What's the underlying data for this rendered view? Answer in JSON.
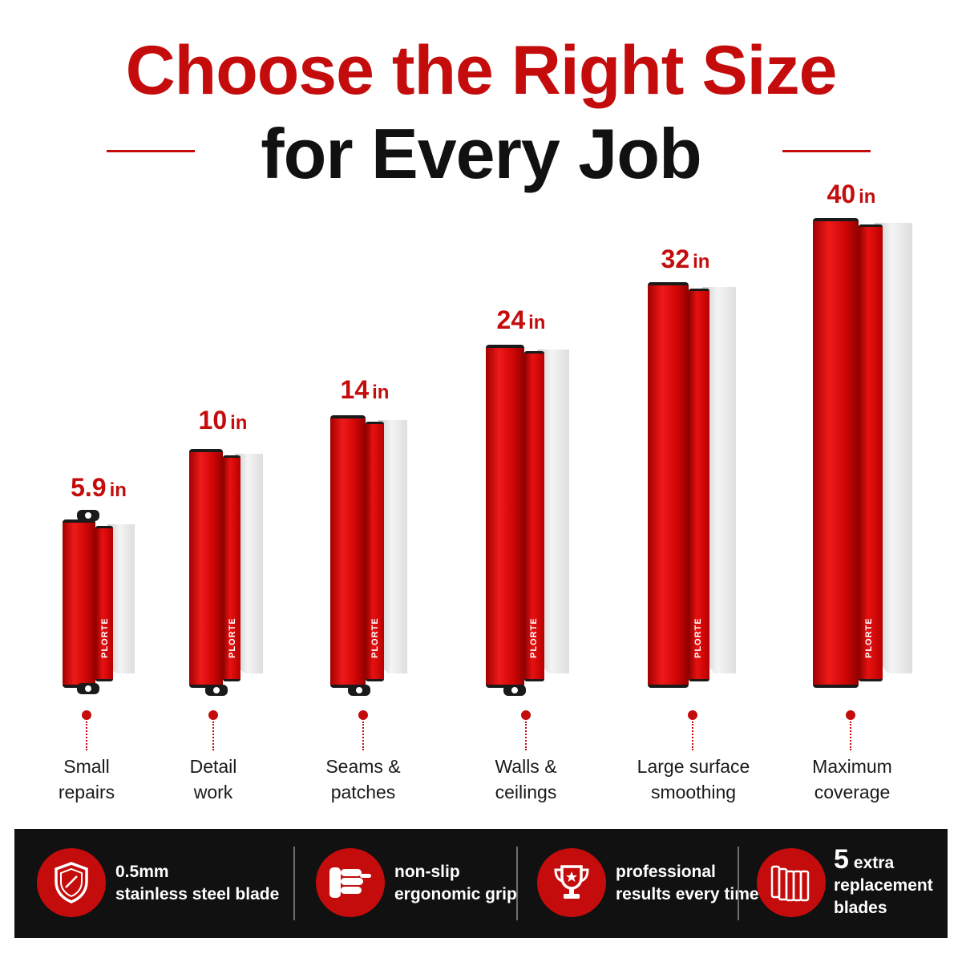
{
  "colors": {
    "accent": "#c40c0c",
    "text_dark": "#111111",
    "bar_bg": "#111111"
  },
  "headline": {
    "line1": "Choose the Right Size",
    "line2": "for Every Job"
  },
  "brand": "PLORTE",
  "sizes": [
    {
      "num": "5.9",
      "unit": "in",
      "use": "Small\nrepairs"
    },
    {
      "num": "10",
      "unit": "in",
      "use": "Detail\nwork"
    },
    {
      "num": "14",
      "unit": "in",
      "use": "Seams &\npatches"
    },
    {
      "num": "24",
      "unit": "in",
      "use": "Walls &\nceilings"
    },
    {
      "num": "32",
      "unit": "in",
      "use": "Large surface\nsmoothing"
    },
    {
      "num": "40",
      "unit": "in",
      "use": "Maximum\ncoverage"
    }
  ],
  "features": [
    {
      "icon": "shield-icon",
      "line1": "0.5mm",
      "line2": "stainless steel blade"
    },
    {
      "icon": "grip-hand-icon",
      "line1": "non-slip",
      "line2": "ergonomic grip"
    },
    {
      "icon": "trophy-icon",
      "line1": "professional",
      "line2": "results every time"
    },
    {
      "icon": "blades-icon",
      "num": "5",
      "line1": "extra",
      "line2": "replacement",
      "line3": "blades"
    }
  ]
}
